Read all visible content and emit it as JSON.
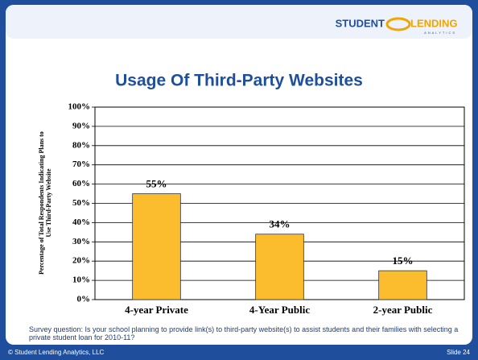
{
  "logo": {
    "word1": "STUDENT",
    "word2": "LENDING",
    "sub": "ANALYTICS"
  },
  "chart_data": {
    "type": "bar",
    "title": "Usage Of Third-Party Websites",
    "y_label": "Percentage of Total Respondents Indicating Plans to Use Third-Party Website",
    "categories": [
      "4-year Private",
      "4-Year Public",
      "2-year Public"
    ],
    "values": [
      55,
      34,
      15
    ],
    "value_labels": [
      "55%",
      "34%",
      "15%"
    ],
    "color": "#fbbd2e",
    "ylim": [
      0,
      100
    ],
    "yticks": [
      {
        "value": 0,
        "label": "0%"
      },
      {
        "value": 10,
        "label": "10%"
      },
      {
        "value": 20,
        "label": "20%"
      },
      {
        "value": 30,
        "label": "30%"
      },
      {
        "value": 40,
        "label": "40%"
      },
      {
        "value": 50,
        "label": "50%"
      },
      {
        "value": 60,
        "label": "60%"
      },
      {
        "value": 70,
        "label": "70%"
      },
      {
        "value": 80,
        "label": "80%"
      },
      {
        "value": 90,
        "label": "90%"
      },
      {
        "value": 100,
        "label": "100%"
      }
    ],
    "grid": true
  },
  "note": "Survey question:  Is your school planning to provide link(s) to third-party website(s) to assist students and their families with selecting a private student loan for 2010-11?",
  "footer": {
    "left": "© Student Lending Analytics, LLC",
    "right": "Slide 24"
  }
}
